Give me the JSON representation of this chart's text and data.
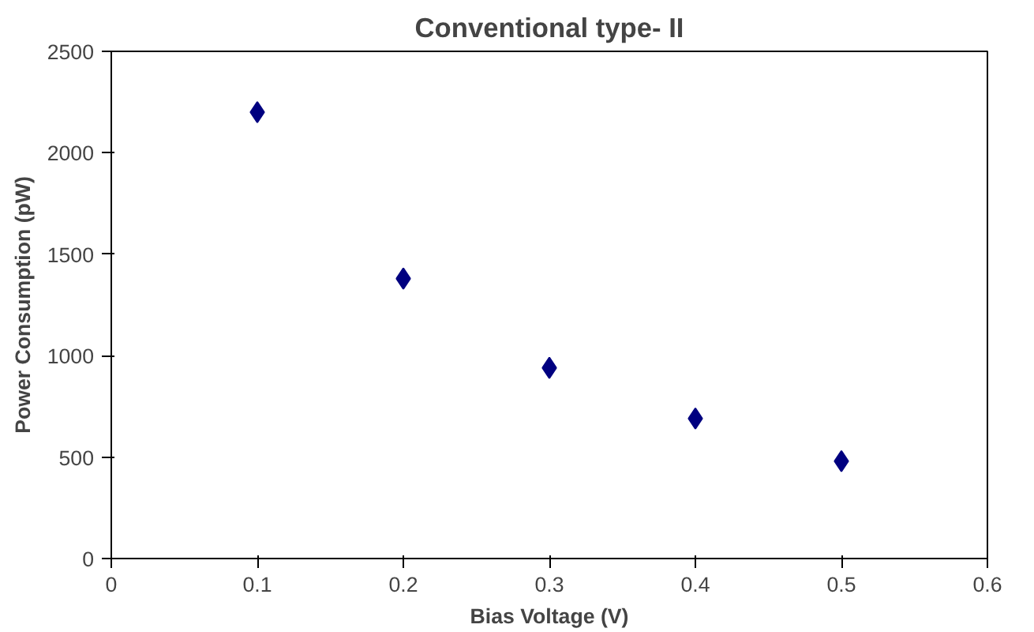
{
  "chart_data": {
    "type": "scatter",
    "title": "Conventional type- II",
    "xlabel": "Bias Voltage (V)",
    "ylabel": "Power Consumption (pW)",
    "x": [
      0.1,
      0.2,
      0.3,
      0.4,
      0.5
    ],
    "series": [
      {
        "color": "#000080",
        "values": [
          2200,
          1380,
          940,
          690,
          480
        ]
      }
    ],
    "xlim": [
      0,
      0.6
    ],
    "xticks": [
      0,
      0.1,
      0.2,
      0.3,
      0.4,
      0.5,
      0.6
    ],
    "ylim": [
      0,
      2500
    ],
    "yticks": [
      0,
      500,
      1000,
      1500,
      2000,
      2500
    ],
    "marker": "diamond",
    "grid": false
  }
}
